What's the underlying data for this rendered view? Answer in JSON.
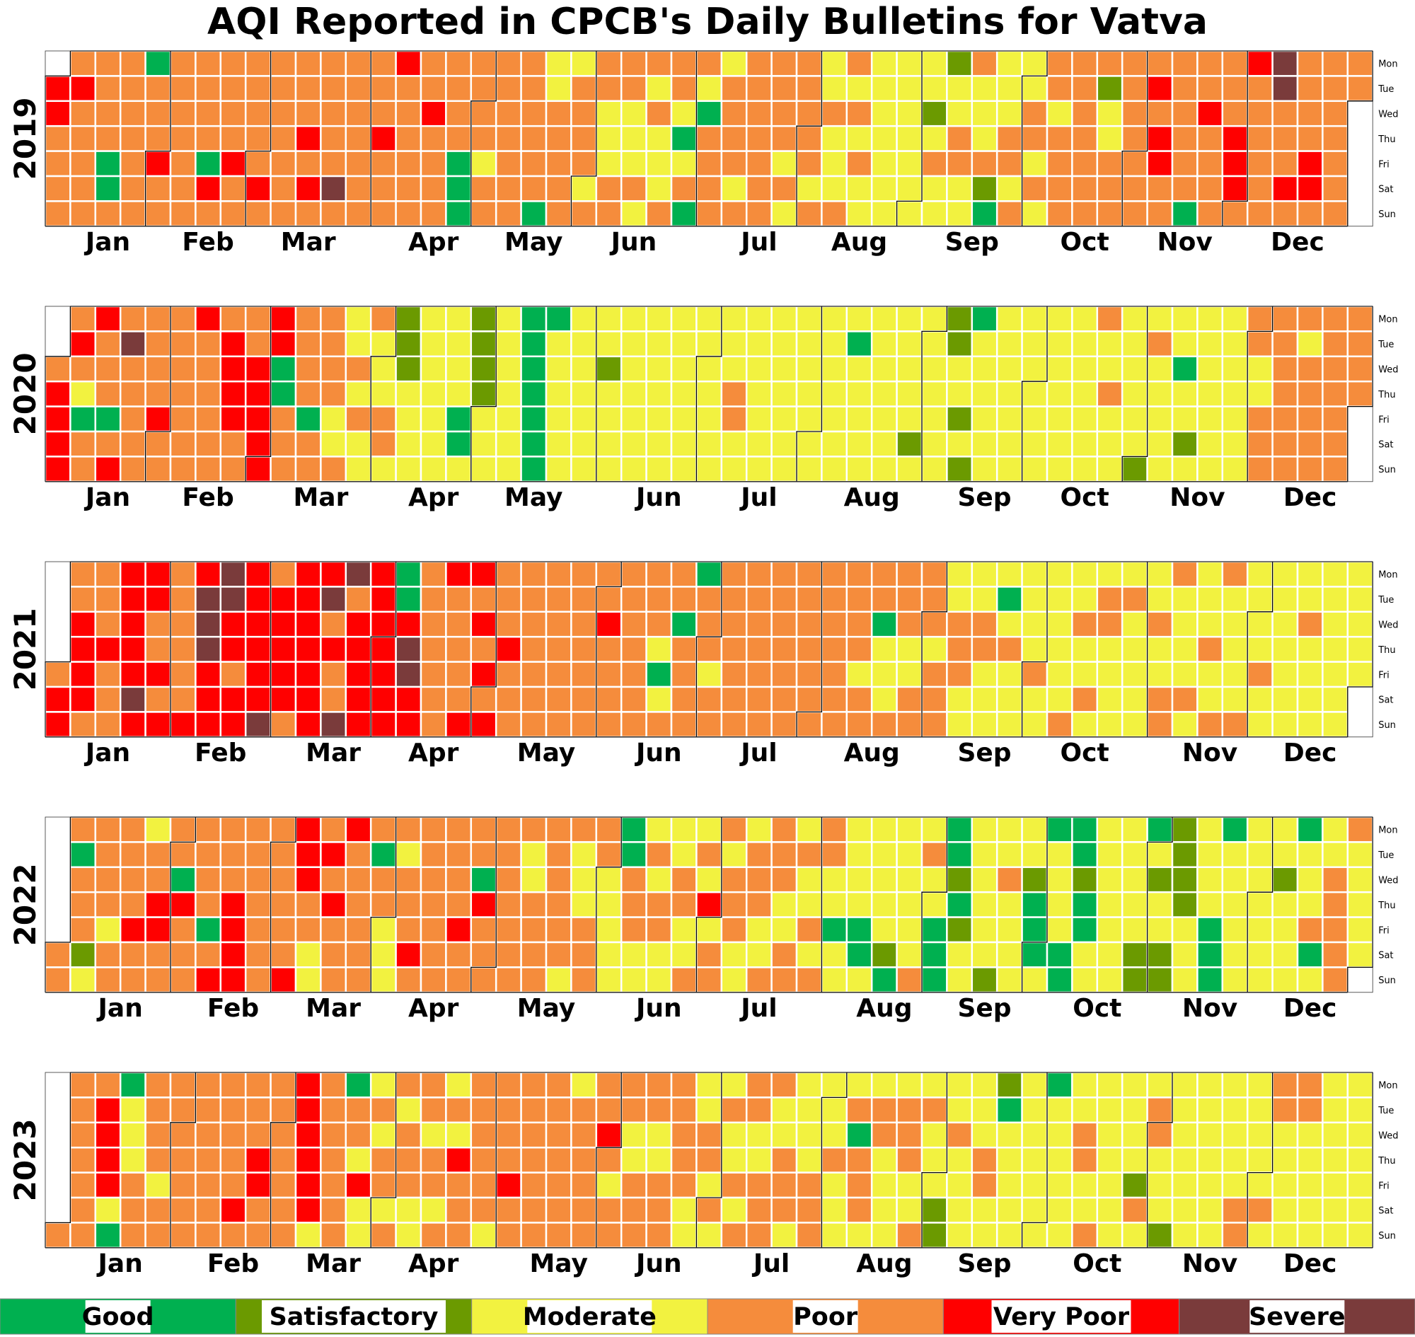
{
  "chart_data": {
    "type": "heatmap",
    "title": "AQI Reported in CPCB's Daily Bulletins for Vatva",
    "weekdays": [
      "Mon",
      "Tue",
      "Wed",
      "Thu",
      "Fri",
      "Sat",
      "Sun"
    ],
    "months": [
      "Jan",
      "Feb",
      "Mar",
      "Apr",
      "May",
      "Jun",
      "Jul",
      "Aug",
      "Sep",
      "Oct",
      "Nov",
      "Dec"
    ],
    "categories": [
      {
        "code": "G",
        "name": "Good",
        "color": "#00b050"
      },
      {
        "code": "S",
        "name": "Satisfactory",
        "color": "#6b9a00"
      },
      {
        "code": "M",
        "name": "Moderate",
        "color": "#f2f240"
      },
      {
        "code": "P",
        "name": "Poor",
        "color": "#f58c3c"
      },
      {
        "code": "V",
        "name": "Very Poor",
        "color": "#ff0000"
      },
      {
        "code": "X",
        "name": "Severe",
        "color": "#7a3b3b"
      }
    ],
    "no_data_color": "#f3f3f3",
    "years": [
      {
        "year": 2019,
        "days": [
          "",
          "",
          "",
          "",
          "",
          "",
          "",
          "",
          "",
          "",
          "",
          "",
          "",
          "",
          "",
          "",
          "",
          "",
          "",
          "",
          "",
          "",
          "",
          "",
          "",
          "",
          "",
          "",
          "",
          "",
          "",
          "",
          "",
          "",
          "",
          "",
          "",
          "",
          "",
          "",
          "",
          "",
          "",
          "",
          "",
          "",
          "",
          "",
          "",
          "",
          "",
          "",
          "VVPPPPPVPP",
          "PPPPPPPGGPPPPPPPPGPPPVPPPPPPPPPPPPPGVPPPPPVPPPPPPPVPPPPPP",
          "PPPPPVPVPPPPPPXPPPPPPPPPPPVPPPVPPPPPPPPVPPPPPPPPGGGPPPPMPPPPPPPPPPPPPPP",
          "GMMPPPPPMPPPPMPPPMMMPPPPMMMPMPMPMMMPPPMGMPGPMGPPPPMPPPPMPPPPPPPPPPPPMPMPPPPPMPMMPMMMPPMPM",
          "PMMMMMMMMMMMMMMMMMMSMPMMSMMPPMMPMMMPSGMMMPPMPMMPPMPMPPMPPPPPPPPPPPPSMMPPPPPPPPPPPVPVVPPPPPPPPGPPVPPPPPPPVVVPVPPPPPPXXPPPVPPPPPVVPPPPPPPPPPPPPPMPPPP"
        ]
      },
      {
        "year": 2020,
        "days": [
          "PVVVVPVPMGPPVPPPGPVPXPPPPPPPPPVPPPPPPPPPVPPPPPPPVVVVPPPPVVVVVVVG",
          "GPPPPPPPGPPPPPPMMPMMPMPMMPMMMPPMSSSMMMMMMMMMMMMMMMGGMSSSSMMMMMMMMMMGGGGGGGG",
          "MMMMMMMMMMMMMMMSMMMMMMMMMMMMMMMMMMMMMMMMMMMMMMMMMMMPPMMMMMMMMMMMMMMMMMMMMMMMMMMMMMMMGMMMMMMMMMMM",
          "MMMMMMSMMMMMMMMSSMMSMSGMMMMMMMMMMMMMMMMMMMMMMMMMMMMMMMMMMPMMPMMMMMMMMMSMPMMMMMMMGMMSMMMMMMMMMMMMMM",
          "MPPMMPPPPPPPPPPPMPPPPPPPPPPPPPPPPPPPPPPPPPPPPPPPPPPPPPPPPPPPPPPPPPPPPPPPPPPPPPPPPPPPPPPPPMPPPPPPPPPPPPPPPPPVPPPP",
          "GGGPPVPVVVPPPXVPPPPPPPPPPPPPPPPPPPPPPPMPPVPPPPPPPPPPPPPPPPPPPPPPPPPPPPPPPVVVVVVGPPPPPPPPPPPVVPPPPPPPV"
        ]
      },
      {
        "year": 2021,
        "days": [
          "PVVPPVVVVPPPPVPPPVVVVVXVVVPPVPVPPPPPPVVXXXVVVXXVVPVVVVVVVVXPVVVVV",
          "PVVVVVVVVXPVPPXXPVVVVVVVVVVVVGGVXXVVPPPPPPPVPPPPPVVPVPVPVPPPVPPPPPPPPPPPPPPPPPPPPPPPPPPVPPPPPPPPPPPP",
          "PPMGMPPPGPPPPGPPPMPPPPPPPPPPPPPPPPPPPPPPPPPPPPPPPPPPPPPPPPPMPPPPGMMMPPPPMMPPPPPMPPPMMPPPMMMMPPMMM",
          "MGMPMMMMMMMPMMMMMMMMPMMPMMPMMPPMMMMMPMMMMMMMPMMPPPMMMMPMMMMPMMPPMMMMMPMMMMPMMMMMMMMMMMPMMMMMMMMMMMMM",
          "MMMMMMMMMMMMMMMMMMMMMPMMMSMMMMMMGPPPPPVPPGGGGPPVPPPPPPPPPPPPPPPPPPPPVPPPPPPPPPPPPPPPPPMPPPPPPPPPVPPPPPP",
          "PVPPPVPPPXVPPPGPGPPPPMPPVPPVMPPPPPPPPPPPPVPPPPPPPPPPPPPXXVVVPPPPPPPP"
        ]
      },
      {
        "year": 2022,
        "days": [
          "PPPGPPPSMPPPPMPPPPPPVPPMPPVVPPPPGVPPPPPPPGPVPPPVVVVPPPPPPPPPPPPPVVVVPPMMPVPVPPPVPPPPPPPGPPMMMPMPPP",
          "VPPPPPPPPPPPPVPPPPGVPPPPPPPPPPPMMPPPPPPPPPPMPMMMPPPPPMMMMMGGPPPMMMPMPPMMMMPPMMPMPMVMPPPMPPPMMMPPPMMPPPPMMPPMPMMPMPPPMM",
          "GMMMMMMGGMMMMMMSGMMMMMMPMPMMGGGGGSGSMMMMMMMMSMMPMMMMMMSGGGMGMMMMGGGGSGGMMMMMMMMMMMMMMSSGMSMMSSSSSSMMMMMMMGGGGMM",
          "MMMMMMMMMMMMMSMMMMGMMMPGMMMPPPPPPMMMMMMMMPPPMPMMMPPPSPPPPPPMPPPPMPPPPMPPPPPPPPPPPPPPPPPPPVVPPPPPPVVPPPPPPPPPVPPPPPPVGGMPPMPPPMPPPPPPPPMPPPPPPMPPPPPPPVPPPPPPPPP"
        ]
      },
      {
        "year": 2023,
        "days": [
          "PPPPPPPPPVVVVMGGMMMPPPPPPPMPPPPPPPPPPPPPPPPPPPPPVPPPPVVPPPPPPPPPVVVVVVMPPPPPPPGPPMVMMMPMPPMPPMPPPMMPPMPPMPMPMVPPPPPPPPPMPPPPVPPPPPPPPPPPPPPPPMPPPPPPPPVPMPPPPMMPPPPPMMPPPPPPPPMMMMPPMPMMPMMPMPPPMMPPPPMMPPPMMMMMPPPMMMPMMMMPGPPPMMPPMMMMMPPPMMPMPMMMSSMMPMMMMMMMPPMMSGMMMMMMMMMMMMGMMMMMMMMPPMMPMMMMMMMMMMMSPMMPPMMMSMMMMMMMMMMMMMMMMMMMPPMMMMMPMPPMMMMMPPMMMMMMMMMMMMMMMMMMMMMMMPMMMMMMMMMMMMMMMMPMMMMMMMMMMMMMMMMPPPPPPPPPPPPPPPPPPPPPPPPPPPPPPPPPPPPPPPPPVVVPPPPPPPPPPMVVVPPPPPPPPPMMMMMGGGGGGGPPPPPPPSGMMPPPSMMMMMMMGMMMMMMMMMMMMMMMMMMMPPPPMMMPPPPPMMPPPPPP"
        ]
      }
    ]
  }
}
